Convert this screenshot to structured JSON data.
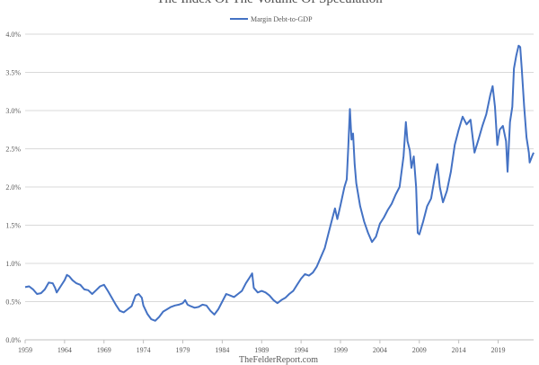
{
  "chart_data": {
    "type": "line",
    "title": "The Index Of The Volume Of Speculation",
    "source": "TheFelderReport.com",
    "series": [
      {
        "name": "Margin Debt-to-GDP",
        "color": "#4472c4",
        "points": [
          [
            1959.0,
            0.69
          ],
          [
            1959.5,
            0.7
          ],
          [
            1960.0,
            0.66
          ],
          [
            1960.5,
            0.6
          ],
          [
            1961.0,
            0.61
          ],
          [
            1961.5,
            0.66
          ],
          [
            1962.0,
            0.75
          ],
          [
            1962.5,
            0.74
          ],
          [
            1962.8,
            0.68
          ],
          [
            1963.0,
            0.62
          ],
          [
            1963.5,
            0.7
          ],
          [
            1964.0,
            0.78
          ],
          [
            1964.3,
            0.85
          ],
          [
            1964.6,
            0.83
          ],
          [
            1965.0,
            0.78
          ],
          [
            1965.5,
            0.74
          ],
          [
            1966.0,
            0.72
          ],
          [
            1966.5,
            0.66
          ],
          [
            1967.0,
            0.65
          ],
          [
            1967.5,
            0.6
          ],
          [
            1968.0,
            0.65
          ],
          [
            1968.5,
            0.7
          ],
          [
            1969.0,
            0.72
          ],
          [
            1969.5,
            0.64
          ],
          [
            1970.0,
            0.55
          ],
          [
            1970.5,
            0.46
          ],
          [
            1971.0,
            0.38
          ],
          [
            1971.5,
            0.36
          ],
          [
            1972.0,
            0.4
          ],
          [
            1972.5,
            0.44
          ],
          [
            1973.0,
            0.58
          ],
          [
            1973.4,
            0.6
          ],
          [
            1973.8,
            0.55
          ],
          [
            1974.0,
            0.45
          ],
          [
            1974.5,
            0.34
          ],
          [
            1975.0,
            0.27
          ],
          [
            1975.5,
            0.25
          ],
          [
            1976.0,
            0.3
          ],
          [
            1976.5,
            0.37
          ],
          [
            1977.0,
            0.4
          ],
          [
            1977.5,
            0.43
          ],
          [
            1978.0,
            0.45
          ],
          [
            1978.5,
            0.46
          ],
          [
            1979.0,
            0.48
          ],
          [
            1979.3,
            0.52
          ],
          [
            1979.6,
            0.46
          ],
          [
            1980.0,
            0.44
          ],
          [
            1980.5,
            0.42
          ],
          [
            1981.0,
            0.43
          ],
          [
            1981.5,
            0.46
          ],
          [
            1982.0,
            0.45
          ],
          [
            1982.5,
            0.38
          ],
          [
            1983.0,
            0.33
          ],
          [
            1983.5,
            0.4
          ],
          [
            1984.0,
            0.5
          ],
          [
            1984.5,
            0.6
          ],
          [
            1985.0,
            0.58
          ],
          [
            1985.5,
            0.56
          ],
          [
            1986.0,
            0.6
          ],
          [
            1986.5,
            0.64
          ],
          [
            1987.0,
            0.74
          ],
          [
            1987.5,
            0.82
          ],
          [
            1987.8,
            0.87
          ],
          [
            1988.0,
            0.68
          ],
          [
            1988.5,
            0.62
          ],
          [
            1989.0,
            0.64
          ],
          [
            1989.5,
            0.62
          ],
          [
            1990.0,
            0.58
          ],
          [
            1990.5,
            0.52
          ],
          [
            1991.0,
            0.48
          ],
          [
            1991.5,
            0.52
          ],
          [
            1992.0,
            0.55
          ],
          [
            1992.5,
            0.6
          ],
          [
            1993.0,
            0.64
          ],
          [
            1993.5,
            0.72
          ],
          [
            1994.0,
            0.8
          ],
          [
            1994.5,
            0.86
          ],
          [
            1995.0,
            0.84
          ],
          [
            1995.5,
            0.88
          ],
          [
            1996.0,
            0.96
          ],
          [
            1996.5,
            1.08
          ],
          [
            1997.0,
            1.2
          ],
          [
            1997.5,
            1.4
          ],
          [
            1998.0,
            1.6
          ],
          [
            1998.3,
            1.72
          ],
          [
            1998.6,
            1.58
          ],
          [
            1999.0,
            1.76
          ],
          [
            1999.5,
            2.0
          ],
          [
            1999.8,
            2.1
          ],
          [
            2000.0,
            2.55
          ],
          [
            2000.2,
            3.02
          ],
          [
            2000.4,
            2.62
          ],
          [
            2000.6,
            2.7
          ],
          [
            2000.8,
            2.3
          ],
          [
            2001.0,
            2.05
          ],
          [
            2001.5,
            1.75
          ],
          [
            2002.0,
            1.55
          ],
          [
            2002.5,
            1.4
          ],
          [
            2003.0,
            1.28
          ],
          [
            2003.5,
            1.35
          ],
          [
            2004.0,
            1.52
          ],
          [
            2004.5,
            1.6
          ],
          [
            2005.0,
            1.7
          ],
          [
            2005.5,
            1.78
          ],
          [
            2006.0,
            1.9
          ],
          [
            2006.5,
            2.0
          ],
          [
            2007.0,
            2.4
          ],
          [
            2007.3,
            2.85
          ],
          [
            2007.5,
            2.6
          ],
          [
            2007.8,
            2.48
          ],
          [
            2008.0,
            2.25
          ],
          [
            2008.3,
            2.4
          ],
          [
            2008.6,
            2.0
          ],
          [
            2008.8,
            1.4
          ],
          [
            2009.0,
            1.38
          ],
          [
            2009.5,
            1.55
          ],
          [
            2010.0,
            1.75
          ],
          [
            2010.5,
            1.85
          ],
          [
            2011.0,
            2.15
          ],
          [
            2011.3,
            2.3
          ],
          [
            2011.6,
            2.0
          ],
          [
            2012.0,
            1.8
          ],
          [
            2012.5,
            1.95
          ],
          [
            2013.0,
            2.2
          ],
          [
            2013.5,
            2.55
          ],
          [
            2014.0,
            2.75
          ],
          [
            2014.5,
            2.92
          ],
          [
            2015.0,
            2.82
          ],
          [
            2015.5,
            2.88
          ],
          [
            2016.0,
            2.45
          ],
          [
            2016.5,
            2.62
          ],
          [
            2017.0,
            2.8
          ],
          [
            2017.5,
            2.95
          ],
          [
            2018.0,
            3.2
          ],
          [
            2018.3,
            3.32
          ],
          [
            2018.6,
            3.05
          ],
          [
            2018.9,
            2.55
          ],
          [
            2019.2,
            2.75
          ],
          [
            2019.6,
            2.8
          ],
          [
            2020.0,
            2.6
          ],
          [
            2020.2,
            2.2
          ],
          [
            2020.5,
            2.85
          ],
          [
            2020.8,
            3.05
          ],
          [
            2021.0,
            3.55
          ],
          [
            2021.3,
            3.72
          ],
          [
            2021.6,
            3.85
          ],
          [
            2021.8,
            3.83
          ],
          [
            2022.0,
            3.55
          ],
          [
            2022.3,
            3.05
          ],
          [
            2022.6,
            2.65
          ],
          [
            2022.9,
            2.45
          ],
          [
            2023.0,
            2.32
          ],
          [
            2023.3,
            2.4
          ],
          [
            2023.5,
            2.45
          ]
        ]
      }
    ],
    "x_ticks": [
      "1959",
      "1964",
      "1969",
      "1974",
      "1979",
      "1984",
      "1989",
      "1994",
      "1999",
      "2004",
      "2009",
      "2014",
      "2019"
    ],
    "y_ticks": [
      "0.0%",
      "0.5%",
      "1.0%",
      "1.5%",
      "2.0%",
      "2.5%",
      "3.0%",
      "3.5%",
      "4.0%"
    ],
    "xlim": [
      1959,
      2023.5
    ],
    "ylim": [
      0,
      4
    ],
    "grid": "horizontal",
    "legend_position": "top"
  }
}
